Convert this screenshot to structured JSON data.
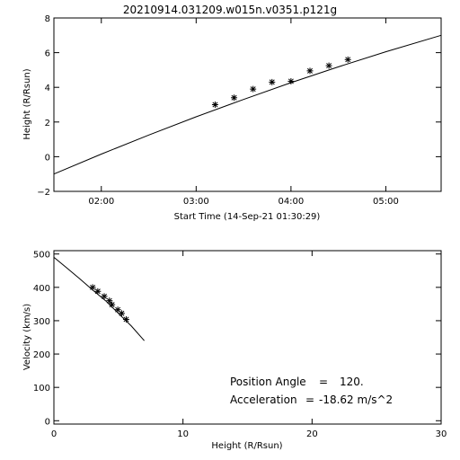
{
  "figure_title": "20210914.031209.w015n.v0351.p121g",
  "chart_data": [
    {
      "type": "line",
      "title": "20210914.031209.w015n.v0351.p121g",
      "xlabel": "Start Time (14-Sep-21 01:30:29)",
      "ylabel": "Height (R/Rsun)",
      "x_is_time": true,
      "x_tick_labels": [
        "02:00",
        "03:00",
        "04:00",
        "05:00"
      ],
      "x_ticks": [
        "02:00",
        "03:00",
        "04:00",
        "05:00"
      ],
      "xlim": [
        "01:30",
        "05:35"
      ],
      "y_ticks": [
        -2,
        0,
        2,
        4,
        6,
        8
      ],
      "ylim": [
        -2,
        8
      ],
      "series": [
        {
          "style": "line",
          "x": [
            "01:30",
            "02:00",
            "02:30",
            "03:00",
            "03:30",
            "04:00",
            "04:30",
            "05:00",
            "05:35"
          ],
          "y": [
            -1.0,
            0.15,
            1.25,
            2.3,
            3.3,
            4.27,
            5.18,
            6.05,
            7.0
          ]
        },
        {
          "style": "markers",
          "marker": "asterisk",
          "x": [
            "03:12",
            "03:24",
            "03:36",
            "03:48",
            "04:00",
            "04:12",
            "04:24",
            "04:36"
          ],
          "y": [
            3.0,
            3.4,
            3.9,
            4.3,
            4.35,
            4.95,
            5.25,
            5.6
          ]
        }
      ]
    },
    {
      "type": "line",
      "xlabel": "Height (R/Rsun)",
      "ylabel": "Velocity (km/s)",
      "x_ticks": [
        0,
        10,
        20,
        30
      ],
      "xlim": [
        0,
        30
      ],
      "y_ticks": [
        0,
        100,
        200,
        300,
        400,
        500
      ],
      "ylim": [
        -10,
        510
      ],
      "series": [
        {
          "style": "line",
          "x": [
            0,
            1,
            2,
            3,
            4,
            5,
            6,
            7
          ],
          "y": [
            490,
            458,
            426,
            392,
            360,
            322,
            284,
            240
          ]
        },
        {
          "style": "markers",
          "marker": "asterisk",
          "x": [
            3.0,
            3.4,
            3.9,
            4.3,
            4.5,
            4.95,
            5.25,
            5.6
          ],
          "y": [
            400,
            388,
            373,
            360,
            348,
            333,
            322,
            304
          ]
        }
      ],
      "annotations": [
        {
          "label": "Position Angle",
          "value": "120."
        },
        {
          "label": "Acceleration",
          "value": "-18.62 m/s^2"
        }
      ]
    }
  ]
}
